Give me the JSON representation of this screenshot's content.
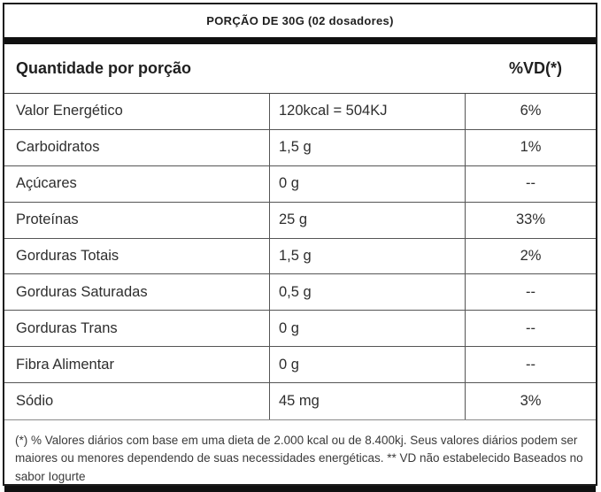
{
  "label": {
    "title": "PORÇÃO DE 30G (02 dosadores)",
    "header": {
      "quantity_label": "Quantidade por porção",
      "dv_label": "%VD(*)"
    },
    "rows": [
      {
        "name": "Valor Energético",
        "amount": "120kcal = 504KJ",
        "dv": "6%"
      },
      {
        "name": "Carboidratos",
        "amount": "1,5 g",
        "dv": "1%"
      },
      {
        "name": "Açúcares",
        "amount": "0 g",
        "dv": "--"
      },
      {
        "name": "Proteínas",
        "amount": "25 g",
        "dv": "33%"
      },
      {
        "name": "Gorduras Totais",
        "amount": "1,5 g",
        "dv": "2%"
      },
      {
        "name": "Gorduras Saturadas",
        "amount": "0,5 g",
        "dv": "--"
      },
      {
        "name": "Gorduras Trans",
        "amount": "0 g",
        "dv": "--"
      },
      {
        "name": "Fibra Alimentar",
        "amount": "0 g",
        "dv": "--"
      },
      {
        "name": "Sódio",
        "amount": "45 mg",
        "dv": "3%"
      }
    ],
    "footnote": "(*) % Valores diários com base em uma dieta de 2.000 kcal ou de 8.400kj. Seus valores diários podem ser maiores ou menores dependendo de suas necessidades energéticas. ** VD não estabelecido Baseados no sabor Iogurte",
    "colors": {
      "border": "#1c1c1c",
      "grid_line": "#555555",
      "text": "#2e2e2e",
      "bar": "#101010"
    }
  }
}
